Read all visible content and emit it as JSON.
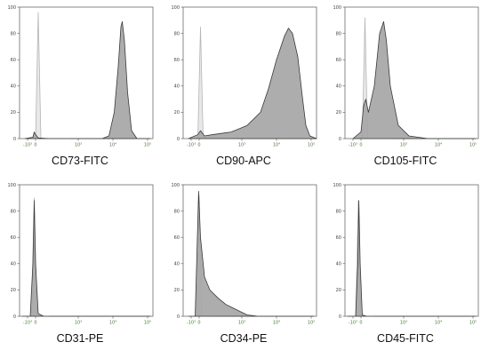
{
  "chart_data": [
    {
      "type": "area",
      "label": "CD73-FITC",
      "y_ticks": [
        "0",
        "20",
        "40",
        "60",
        "80",
        "100"
      ],
      "ylim": [
        0,
        100
      ],
      "x_ticks": [
        "-10³",
        "0",
        "10³",
        "10⁴",
        "10⁵"
      ],
      "series": [
        {
          "role": "control",
          "points": [
            [
              -0.4,
              0
            ],
            [
              0,
              0
            ],
            [
              0.1,
              96
            ],
            [
              0.2,
              0
            ],
            [
              1.3,
              0
            ]
          ]
        },
        {
          "role": "sample",
          "points": [
            [
              -0.4,
              0
            ],
            [
              -0.1,
              1
            ],
            [
              -0.05,
              5
            ],
            [
              0,
              3
            ],
            [
              0.1,
              0.5
            ],
            [
              0.5,
              0
            ],
            [
              2.5,
              0
            ],
            [
              2.75,
              2
            ],
            [
              2.95,
              20
            ],
            [
              3.1,
              55
            ],
            [
              3.2,
              85
            ],
            [
              3.25,
              89
            ],
            [
              3.33,
              75
            ],
            [
              3.45,
              35
            ],
            [
              3.6,
              6
            ],
            [
              3.8,
              0
            ],
            [
              4.3,
              0
            ]
          ]
        }
      ]
    },
    {
      "type": "area",
      "label": "CD90-APC",
      "y_ticks": [
        "0",
        "20",
        "40",
        "60",
        "80",
        "100"
      ],
      "ylim": [
        0,
        100
      ],
      "x_ticks": [
        "-10³",
        "0",
        "10³",
        "10⁴",
        "10⁵"
      ],
      "series": [
        {
          "role": "control",
          "points": [
            [
              -0.4,
              0
            ],
            [
              -0.05,
              0
            ],
            [
              0.05,
              85
            ],
            [
              0.15,
              0
            ],
            [
              1.3,
              0
            ]
          ]
        },
        {
          "role": "sample",
          "points": [
            [
              -0.4,
              0
            ],
            [
              -0.05,
              3
            ],
            [
              0.05,
              6
            ],
            [
              0.2,
              2
            ],
            [
              0.5,
              3
            ],
            [
              1.2,
              5
            ],
            [
              1.8,
              10
            ],
            [
              2.3,
              20
            ],
            [
              2.6,
              38
            ],
            [
              2.9,
              60
            ],
            [
              3.2,
              78
            ],
            [
              3.35,
              84
            ],
            [
              3.5,
              80
            ],
            [
              3.7,
              62
            ],
            [
              3.85,
              35
            ],
            [
              4.0,
              10
            ],
            [
              4.15,
              2
            ],
            [
              4.4,
              0
            ]
          ]
        }
      ]
    },
    {
      "type": "area",
      "label": "CD105-FITC",
      "y_ticks": [
        "0",
        "20",
        "40",
        "60",
        "80",
        "100"
      ],
      "ylim": [
        0,
        100
      ],
      "x_ticks": [
        "-10³",
        "0",
        "10³",
        "10⁴",
        "10⁵"
      ],
      "series": [
        {
          "role": "control",
          "points": [
            [
              -0.3,
              0
            ],
            [
              0.05,
              0
            ],
            [
              0.15,
              92
            ],
            [
              0.25,
              0
            ],
            [
              1.2,
              0
            ]
          ]
        },
        {
          "role": "sample",
          "points": [
            [
              -0.3,
              0
            ],
            [
              0,
              5
            ],
            [
              0.1,
              25
            ],
            [
              0.18,
              30
            ],
            [
              0.28,
              20
            ],
            [
              0.5,
              40
            ],
            [
              0.7,
              80
            ],
            [
              0.85,
              89
            ],
            [
              0.95,
              75
            ],
            [
              1.1,
              40
            ],
            [
              1.4,
              10
            ],
            [
              1.8,
              2
            ],
            [
              2.5,
              0
            ],
            [
              4.3,
              0
            ]
          ]
        }
      ]
    },
    {
      "type": "area",
      "label": "CD31-PE",
      "y_ticks": [
        "0",
        "20",
        "40",
        "60",
        "80",
        "100"
      ],
      "ylim": [
        0,
        100
      ],
      "x_ticks": [
        "-10³",
        "0",
        "10³",
        "10⁴",
        "10⁵"
      ],
      "series": [
        {
          "role": "control",
          "points": [
            [
              -0.5,
              0
            ],
            [
              -0.15,
              0
            ],
            [
              -0.05,
              90
            ],
            [
              0.05,
              0
            ],
            [
              0.5,
              0
            ]
          ]
        },
        {
          "role": "sample",
          "points": [
            [
              -0.5,
              0
            ],
            [
              -0.2,
              0
            ],
            [
              -0.1,
              40
            ],
            [
              -0.05,
              88
            ],
            [
              0,
              40
            ],
            [
              0.1,
              2
            ],
            [
              0.3,
              0
            ],
            [
              4.3,
              0
            ]
          ]
        }
      ]
    },
    {
      "type": "area",
      "label": "CD34-PE",
      "y_ticks": [
        "0",
        "20",
        "40",
        "60",
        "80",
        "100"
      ],
      "ylim": [
        0,
        100
      ],
      "x_ticks": [
        "-10³",
        "0",
        "10³",
        "10⁴",
        "10⁵"
      ],
      "series": [
        {
          "role": "control",
          "points": [
            [
              -0.4,
              0
            ],
            [
              -0.1,
              0
            ],
            [
              0,
              92
            ],
            [
              0.1,
              0
            ],
            [
              0.5,
              0
            ]
          ]
        },
        {
          "role": "sample",
          "points": [
            [
              -0.4,
              0
            ],
            [
              -0.15,
              0
            ],
            [
              -0.08,
              50
            ],
            [
              -0.02,
              95
            ],
            [
              0.05,
              60
            ],
            [
              0.2,
              30
            ],
            [
              0.4,
              20
            ],
            [
              0.7,
              14
            ],
            [
              1.0,
              9
            ],
            [
              1.3,
              6
            ],
            [
              1.5,
              4
            ],
            [
              1.8,
              1
            ],
            [
              2.2,
              0
            ],
            [
              4.3,
              0
            ]
          ]
        }
      ]
    },
    {
      "type": "area",
      "label": "CD45-FITC",
      "y_ticks": [
        "0",
        "20",
        "40",
        "60",
        "80",
        "100"
      ],
      "ylim": [
        0,
        100
      ],
      "x_ticks": [
        "-10³",
        "0",
        "10³",
        "10⁴",
        "10⁵"
      ],
      "series": [
        {
          "role": "control",
          "points": [
            [
              -0.5,
              0
            ],
            [
              -0.2,
              0
            ],
            [
              -0.1,
              88
            ],
            [
              0,
              0
            ],
            [
              0.5,
              0
            ]
          ]
        },
        {
          "role": "sample",
          "points": [
            [
              -0.5,
              0
            ],
            [
              -0.2,
              0
            ],
            [
              -0.12,
              40
            ],
            [
              -0.08,
              88
            ],
            [
              -0.03,
              40
            ],
            [
              0.05,
              1
            ],
            [
              0.2,
              0
            ],
            [
              4.3,
              0
            ]
          ]
        }
      ]
    }
  ],
  "colors": {
    "sample_fill": "#a6a6a6",
    "sample_stroke": "#3a3a3a",
    "control_fill": "#e6e6e6",
    "control_stroke": "#b5b5b5",
    "x_tick_text": "#4b7a3a"
  }
}
